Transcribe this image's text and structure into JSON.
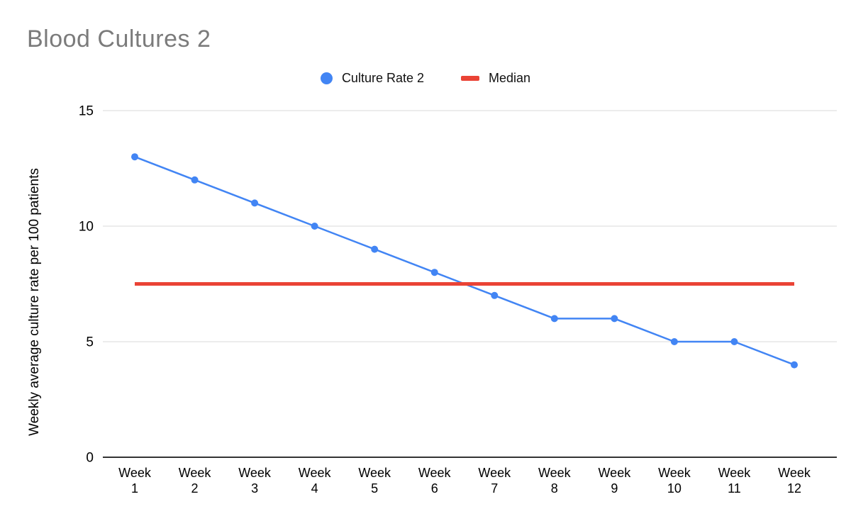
{
  "page": {
    "title": "Blood Cultures 2"
  },
  "colors": {
    "series_blue": "#4285f4",
    "median_red": "#ea4335",
    "title_gray": "#7b7b7b",
    "gridline_gray": "#d9d9d9",
    "axis_black": "#333333"
  },
  "chart_data": {
    "type": "line",
    "title": "Blood Cultures 2",
    "categories": [
      "Week 1",
      "Week 2",
      "Week 3",
      "Week 4",
      "Week 5",
      "Week 6",
      "Week 7",
      "Week 8",
      "Week 9",
      "Week 10",
      "Week 11",
      "Week 12"
    ],
    "series": [
      {
        "name": "Culture Rate 2",
        "marker": "circle",
        "color": "#4285f4",
        "values": [
          13,
          12,
          11,
          10,
          9,
          8,
          7,
          6,
          6,
          5,
          5,
          4
        ]
      },
      {
        "name": "Median",
        "marker": "dash",
        "color": "#ea4335",
        "value": 7.5
      }
    ],
    "xlabel": "",
    "ylabel": "Weekly average culture rate per 100 patients",
    "ylim": [
      0,
      15
    ],
    "yticks": [
      0,
      5,
      10,
      15
    ],
    "grid": true,
    "legend_position": "top"
  }
}
